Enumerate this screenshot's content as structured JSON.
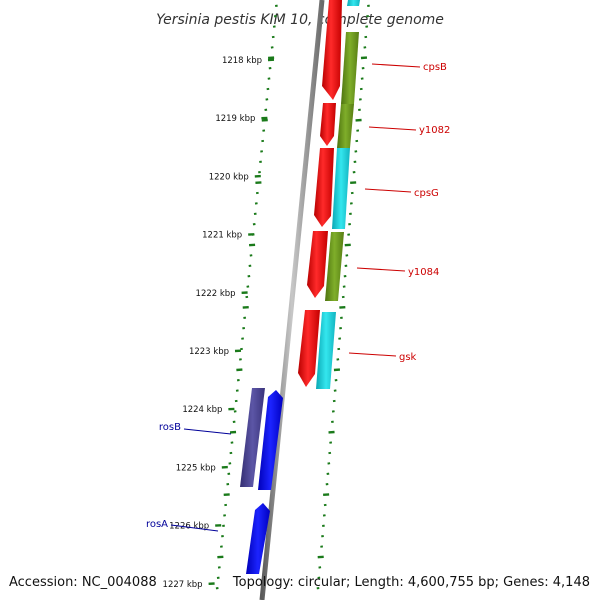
{
  "title": "Yersinia pestis KIM 10, complete genome",
  "accession": "Accession: NC_004088",
  "topology": "Topology: circular; Length: 4,600,755 bp; Genes: 4,148",
  "colors": {
    "forward_red": "#ff1010",
    "olive": "#6b9a1e",
    "cyan": "#1ccfd9",
    "blue": "#0a10f0",
    "slate": "#4a4490",
    "tick": "#1a7a1a",
    "label_red": "#cc0000",
    "label_blue": "#000099"
  },
  "chart_data": {
    "type": "genome-map",
    "scale_unit": "kbp",
    "scale_labels": [
      "1218 kbp",
      "1219 kbp",
      "1220 kbp",
      "1221 kbp",
      "1222 kbp",
      "1223 kbp",
      "1224 kbp",
      "1225 kbp",
      "1226 kbp",
      "1227 kbp"
    ],
    "gene_labels": [
      {
        "name": "cpsB",
        "strand": "+",
        "color": "#cc0000"
      },
      {
        "name": "y1082",
        "strand": "+",
        "color": "#cc0000"
      },
      {
        "name": "cpsG",
        "strand": "+",
        "color": "#cc0000"
      },
      {
        "name": "y1084",
        "strand": "+",
        "color": "#cc0000"
      },
      {
        "name": "gsk",
        "strand": "+",
        "color": "#cc0000"
      },
      {
        "name": "rosB",
        "strand": "-",
        "color": "#000099"
      },
      {
        "name": "rosA",
        "strand": "-",
        "color": "#000099"
      }
    ]
  }
}
